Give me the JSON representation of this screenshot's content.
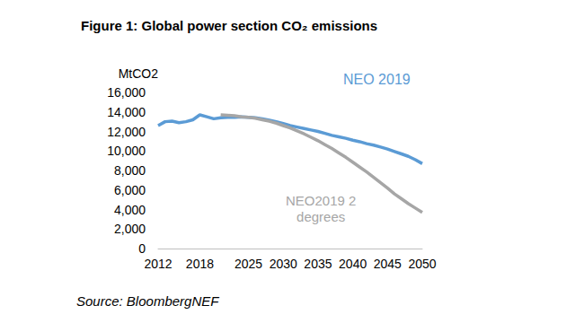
{
  "chart_data": {
    "type": "line",
    "title": "Figure 1: Global power section CO₂ emissions",
    "ylabel": "MtCO2",
    "source": "Source: BloombergNEF",
    "x": [
      2012,
      2013,
      2014,
      2015,
      2016,
      2017,
      2018,
      2019,
      2020,
      2021,
      2022,
      2023,
      2024,
      2025,
      2026,
      2027,
      2028,
      2029,
      2030,
      2031,
      2032,
      2033,
      2034,
      2035,
      2036,
      2037,
      2038,
      2039,
      2040,
      2041,
      2042,
      2043,
      2044,
      2045,
      2046,
      2047,
      2048,
      2049,
      2050
    ],
    "series": [
      {
        "name": "NEO 2019",
        "color": "#5b9bd5",
        "values": [
          12600,
          13000,
          13050,
          12900,
          13000,
          13200,
          13700,
          13500,
          13300,
          13400,
          13450,
          13450,
          13500,
          13450,
          13400,
          13300,
          13150,
          13000,
          12800,
          12600,
          12450,
          12300,
          12150,
          12000,
          11800,
          11600,
          11450,
          11300,
          11100,
          10950,
          10750,
          10600,
          10400,
          10200,
          9950,
          9700,
          9450,
          9100,
          8700
        ]
      },
      {
        "name": "NEO2019 2 degrees",
        "color": "#a6a6a6",
        "values": [
          null,
          null,
          null,
          null,
          null,
          null,
          null,
          null,
          null,
          13700,
          13650,
          13600,
          13500,
          13450,
          13350,
          13200,
          13050,
          12850,
          12600,
          12350,
          12050,
          11750,
          11400,
          11050,
          10650,
          10250,
          9800,
          9350,
          8850,
          8350,
          7850,
          7300,
          6750,
          6200,
          5600,
          5100,
          4600,
          4150,
          3700
        ]
      }
    ],
    "xlim": [
      2012,
      2050
    ],
    "xticks": [
      2012,
      2018,
      2025,
      2030,
      2035,
      2040,
      2045,
      2050
    ],
    "ylim": [
      0,
      16000
    ],
    "yticks": [
      0,
      {
        "value": 2000,
        "label": "2,000"
      },
      {
        "value": 4000,
        "label": "4,000"
      },
      {
        "value": 6000,
        "label": "6,000"
      },
      {
        "value": 8000,
        "label": "8,000"
      },
      {
        "value": 10000,
        "label": "10,000"
      },
      {
        "value": 12000,
        "label": "12,000"
      },
      {
        "value": 14000,
        "label": "14,000"
      },
      {
        "value": 16000,
        "label": "16,000"
      }
    ],
    "grid": false
  }
}
